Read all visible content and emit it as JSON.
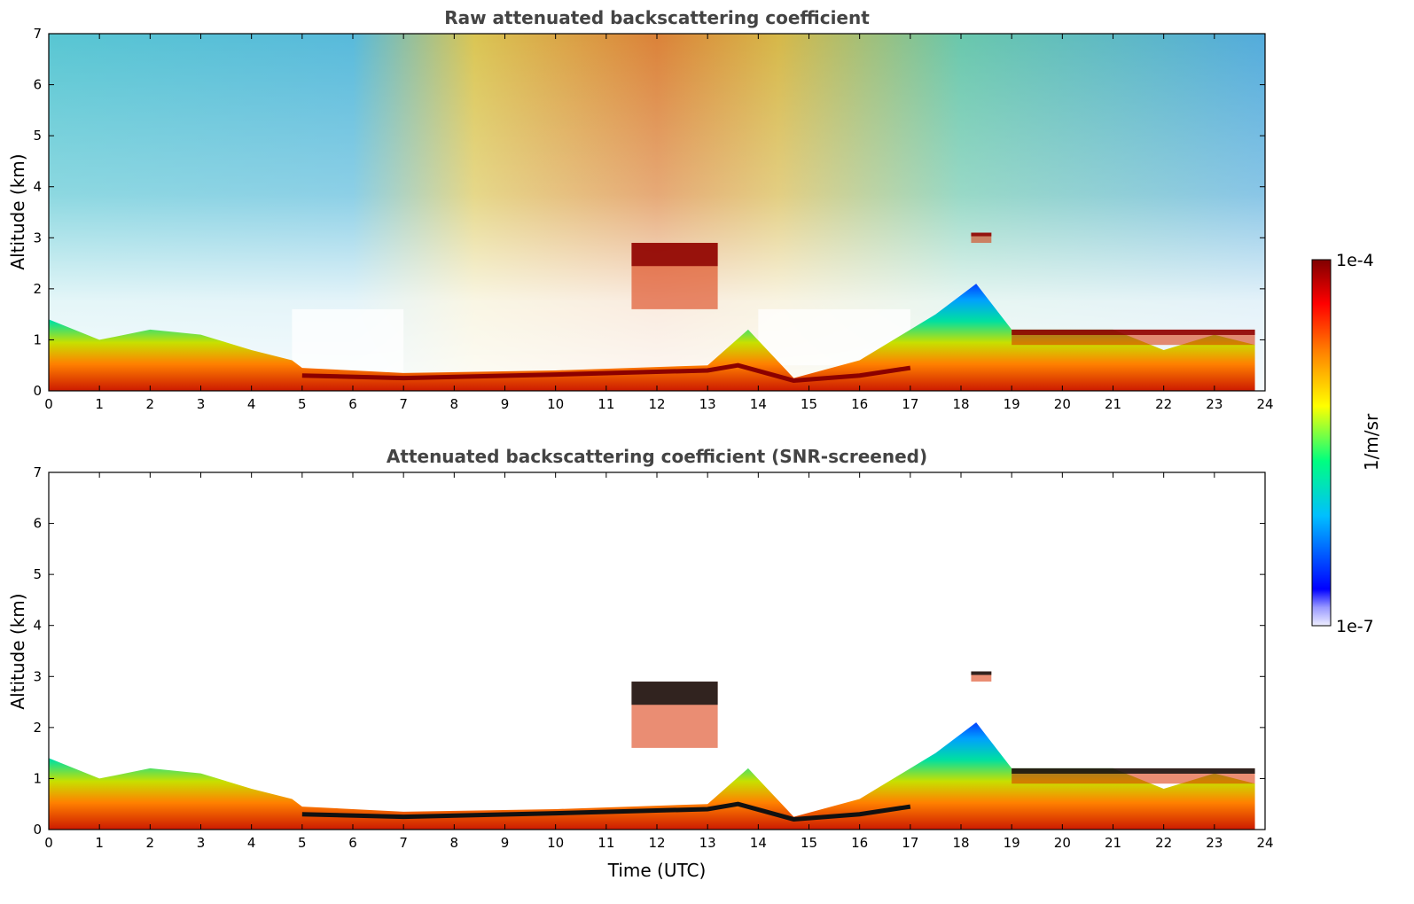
{
  "chart_data": [
    {
      "type": "heatmap",
      "title": "Raw attenuated backscattering coefficient",
      "xlabel": "",
      "ylabel": "Altitude (km)",
      "xlim": [
        0,
        24
      ],
      "ylim": [
        0,
        7
      ],
      "x_ticks": [
        "0",
        "1",
        "2",
        "3",
        "4",
        "5",
        "6",
        "7",
        "8",
        "9",
        "10",
        "11",
        "12",
        "13",
        "14",
        "15",
        "16",
        "17",
        "18",
        "19",
        "20",
        "21",
        "22",
        "23",
        "24"
      ],
      "y_ticks": [
        "0",
        "1",
        "2",
        "3",
        "4",
        "5",
        "6",
        "7"
      ],
      "features": {
        "aerosol_layer_top_km": [
          {
            "time": 0,
            "alt": 1.4
          },
          {
            "time": 1,
            "alt": 1.0
          },
          {
            "time": 2,
            "alt": 1.2
          },
          {
            "time": 3,
            "alt": 1.1
          },
          {
            "time": 4,
            "alt": 0.8
          },
          {
            "time": 4.8,
            "alt": 0.6
          },
          {
            "time": 5,
            "alt": 0.45
          },
          {
            "time": 7,
            "alt": 0.35
          },
          {
            "time": 10,
            "alt": 0.4
          },
          {
            "time": 13,
            "alt": 0.5
          },
          {
            "time": 13.8,
            "alt": 1.2
          },
          {
            "time": 14.7,
            "alt": 0.25
          },
          {
            "time": 16,
            "alt": 0.6
          },
          {
            "time": 17.5,
            "alt": 1.5
          },
          {
            "time": 18.3,
            "alt": 2.1
          },
          {
            "time": 19,
            "alt": 1.2
          },
          {
            "time": 21,
            "alt": 1.2
          },
          {
            "time": 22,
            "alt": 0.8
          },
          {
            "time": 23,
            "alt": 1.1
          },
          {
            "time": 23.8,
            "alt": 0.9
          }
        ],
        "clouds": [
          {
            "time_start": 11.5,
            "time_end": 13.2,
            "alt_bottom": 1.6,
            "alt_top": 2.9
          },
          {
            "time_start": 18.2,
            "time_end": 18.6,
            "alt_bottom": 2.9,
            "alt_top": 3.1
          },
          {
            "time_start": 19.0,
            "time_end": 23.8,
            "alt_bottom": 0.9,
            "alt_top": 1.2
          }
        ],
        "noisy_background": true
      }
    },
    {
      "type": "heatmap",
      "title": "Attenuated backscattering coefficient (SNR-screened)",
      "xlabel": "Time (UTC)",
      "ylabel": "Altitude (km)",
      "xlim": [
        0,
        24
      ],
      "ylim": [
        0,
        7
      ],
      "x_ticks": [
        "0",
        "1",
        "2",
        "3",
        "4",
        "5",
        "6",
        "7",
        "8",
        "9",
        "10",
        "11",
        "12",
        "13",
        "14",
        "15",
        "16",
        "17",
        "18",
        "19",
        "20",
        "21",
        "22",
        "23",
        "24"
      ],
      "y_ticks": [
        "0",
        "1",
        "2",
        "3",
        "4",
        "5",
        "6",
        "7"
      ],
      "features": {
        "screened_above_noise": true,
        "same_layers_as_raw": true
      }
    }
  ],
  "colorbar": {
    "label": "1/m/sr",
    "max_label": "1e-4",
    "min_label": "1e-7",
    "min": 1e-07,
    "max": 0.0001,
    "scale": "log",
    "colors": [
      "#eeeeff",
      "#0000ff",
      "#00bfff",
      "#00ff80",
      "#ffff00",
      "#ff8000",
      "#ff0000",
      "#800000"
    ]
  }
}
